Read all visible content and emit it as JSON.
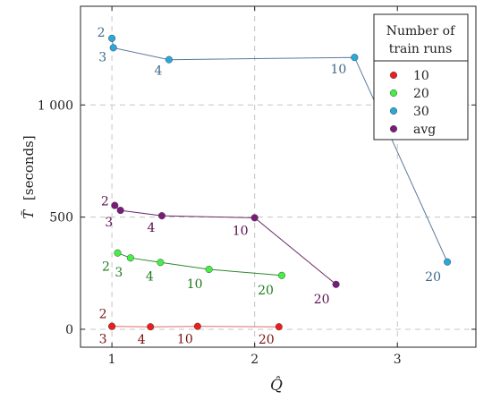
{
  "chart_data": {
    "type": "scatter",
    "xlabel": "Q̂",
    "ylabel_symbol": "T̃",
    "ylabel_unit": "[seconds]",
    "xlim": [
      0.78,
      3.55
    ],
    "ylim": [
      -80,
      1440
    ],
    "xticks": [
      {
        "v": 1,
        "label": "1"
      },
      {
        "v": 2,
        "label": "2"
      },
      {
        "v": 3,
        "label": "3"
      }
    ],
    "yticks": [
      {
        "v": 0,
        "label": "0"
      },
      {
        "v": 500,
        "label": "500"
      },
      {
        "v": 1000,
        "label": "1 000"
      }
    ],
    "grid": true,
    "legend": {
      "position": "top-right",
      "title_lines": [
        "Number of",
        "train runs"
      ],
      "entries": [
        {
          "label": "10",
          "color": "#ee1c1c"
        },
        {
          "label": "20",
          "color": "#44ee44"
        },
        {
          "label": "30",
          "color": "#29a8dd"
        },
        {
          "label": "avg",
          "color": "#7a1a7a"
        }
      ]
    },
    "series": [
      {
        "name": "10",
        "color": "#ee1c1c",
        "line": "#e06a6a",
        "label_color": "#7a1010",
        "points": [
          {
            "x": 1.0,
            "y": 13,
            "label": "2",
            "dx": -10,
            "dy": -14
          },
          {
            "x": 1.0,
            "y": 13,
            "label": "3",
            "dx": -10,
            "dy": 14
          },
          {
            "x": 1.27,
            "y": 11,
            "label": "4",
            "dx": -10,
            "dy": 14
          },
          {
            "x": 1.6,
            "y": 13,
            "label": "10",
            "dx": -14,
            "dy": 14
          },
          {
            "x": 2.17,
            "y": 11,
            "label": "20",
            "dx": -14,
            "dy": 14
          }
        ]
      },
      {
        "name": "20",
        "color": "#44ee44",
        "line": "#2a8a2a",
        "label_color": "#1e7a1e",
        "points": [
          {
            "x": 1.04,
            "y": 340,
            "label": "2",
            "dx": -13,
            "dy": 15
          },
          {
            "x": 1.13,
            "y": 318,
            "label": "3",
            "dx": -13,
            "dy": 16
          },
          {
            "x": 1.34,
            "y": 298,
            "label": "4",
            "dx": -12,
            "dy": 15
          },
          {
            "x": 1.68,
            "y": 267,
            "label": "10",
            "dx": -16,
            "dy": 16
          },
          {
            "x": 2.19,
            "y": 240,
            "label": "20",
            "dx": -18,
            "dy": 16
          }
        ]
      },
      {
        "name": "30",
        "color": "#29a8dd",
        "line": "#5a7a9a",
        "label_color": "#3d6a8a",
        "points": [
          {
            "x": 1.0,
            "y": 1297,
            "label": "2",
            "dx": -12,
            "dy": -7
          },
          {
            "x": 1.01,
            "y": 1255,
            "label": "3",
            "dx": -12,
            "dy": 10
          },
          {
            "x": 1.4,
            "y": 1202,
            "label": "4",
            "dx": -12,
            "dy": 12
          },
          {
            "x": 2.7,
            "y": 1212,
            "label": "10",
            "dx": -18,
            "dy": 13
          },
          {
            "x": 3.35,
            "y": 300,
            "label": "20",
            "dx": -16,
            "dy": 16
          }
        ]
      },
      {
        "name": "avg",
        "color": "#7a1a7a",
        "line": "#6a2a6a",
        "label_color": "#5a1050",
        "points": [
          {
            "x": 1.02,
            "y": 552,
            "label": "2",
            "dx": -11,
            "dy": -5
          },
          {
            "x": 1.06,
            "y": 530,
            "label": "3",
            "dx": -13,
            "dy": 13
          },
          {
            "x": 1.35,
            "y": 506,
            "label": "4",
            "dx": -12,
            "dy": 13
          },
          {
            "x": 2.0,
            "y": 497,
            "label": "10",
            "dx": -16,
            "dy": 14
          },
          {
            "x": 2.57,
            "y": 200,
            "label": "20",
            "dx": -16,
            "dy": 16
          }
        ]
      }
    ]
  }
}
